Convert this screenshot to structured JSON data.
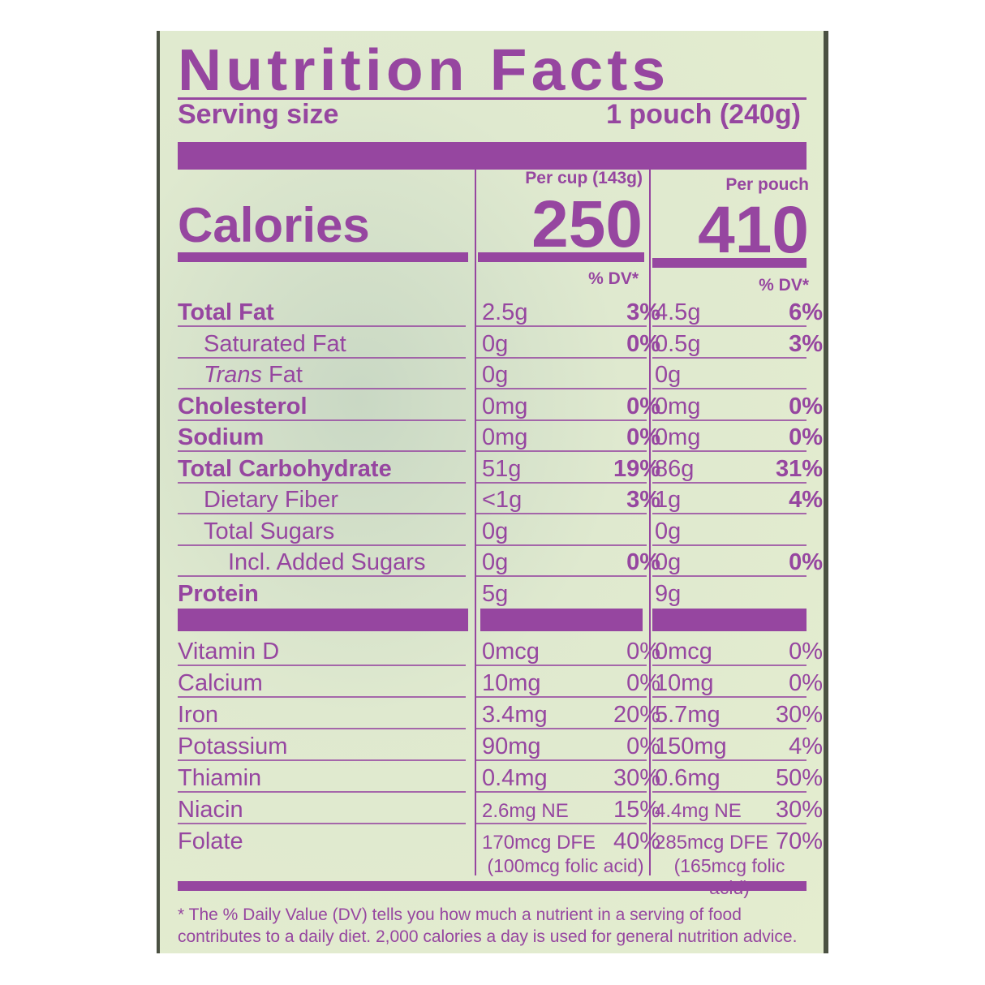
{
  "title": "Nutrition Facts",
  "serving": {
    "label": "Serving size",
    "value": "1 pouch (240g)"
  },
  "calories": {
    "label": "Calories",
    "col1_header": "Per cup (143g)",
    "col1_value": "250",
    "col2_header": "Per pouch",
    "col2_value": "410"
  },
  "dv_header": "% DV*",
  "nutrients": [
    {
      "name": "Total Fat",
      "bold": true,
      "indent": 0,
      "c1": "2.5g",
      "c1dv": "3%",
      "c2": "4.5g",
      "c2dv": "6%"
    },
    {
      "name": "Saturated Fat",
      "bold": false,
      "indent": 1,
      "c1": "0g",
      "c1dv": "0%",
      "c2": "0.5g",
      "c2dv": "3%"
    },
    {
      "name": "Trans Fat",
      "bold": false,
      "indent": 1,
      "c1": "0g",
      "c1dv": "",
      "c2": "0g",
      "c2dv": ""
    },
    {
      "name": "Cholesterol",
      "bold": true,
      "indent": 0,
      "c1": "0mg",
      "c1dv": "0%",
      "c2": "0mg",
      "c2dv": "0%"
    },
    {
      "name": "Sodium",
      "bold": true,
      "indent": 0,
      "c1": "0mg",
      "c1dv": "0%",
      "c2": "0mg",
      "c2dv": "0%"
    },
    {
      "name": "Total Carbohydrate",
      "bold": true,
      "indent": 0,
      "c1": "51g",
      "c1dv": "19%",
      "c2": "86g",
      "c2dv": "31%"
    },
    {
      "name": "Dietary Fiber",
      "bold": false,
      "indent": 1,
      "c1": "<1g",
      "c1dv": "3%",
      "c2": "1g",
      "c2dv": "4%"
    },
    {
      "name": "Total Sugars",
      "bold": false,
      "indent": 1,
      "c1": "0g",
      "c1dv": "",
      "c2": "0g",
      "c2dv": ""
    },
    {
      "name": "Incl. Added Sugars",
      "bold": false,
      "indent": 2,
      "c1": "0g",
      "c1dv": "0%",
      "c2": "0g",
      "c2dv": "0%"
    },
    {
      "name": "Protein",
      "bold": true,
      "indent": 0,
      "c1": "5g",
      "c1dv": "",
      "c2": "9g",
      "c2dv": ""
    }
  ],
  "vitamins": [
    {
      "name": "Vitamin D",
      "c1": "0mcg",
      "c1dv": "0%",
      "c2": "0mcg",
      "c2dv": "0%"
    },
    {
      "name": "Calcium",
      "c1": "10mg",
      "c1dv": "0%",
      "c2": "10mg",
      "c2dv": "0%"
    },
    {
      "name": "Iron",
      "c1": "3.4mg",
      "c1dv": "20%",
      "c2": "5.7mg",
      "c2dv": "30%"
    },
    {
      "name": "Potassium",
      "c1": "90mg",
      "c1dv": "0%",
      "c2": "150mg",
      "c2dv": "4%"
    },
    {
      "name": "Thiamin",
      "c1": "0.4mg",
      "c1dv": "30%",
      "c2": "0.6mg",
      "c2dv": "50%"
    },
    {
      "name": "Niacin",
      "c1": "2.6mg NE",
      "c1dv": "15%",
      "c2": "4.4mg NE",
      "c2dv": "30%"
    },
    {
      "name": "Folate",
      "c1": "170mcg DFE",
      "c1dv": "40%",
      "c2": "285mcg DFE",
      "c2dv": "70%"
    }
  ],
  "folic_acid": {
    "c1": "(100mcg folic acid)",
    "c2": "(165mcg folic acid)"
  },
  "footnote": "* The % Daily Value (DV) tells you how much a nutrient in a serving of food contributes to a daily diet. 2,000 calories a day is used for general nutrition advice.",
  "colors": {
    "ink": "#9646a0",
    "panel": "#e0e9cf",
    "border": "#4b5142"
  }
}
